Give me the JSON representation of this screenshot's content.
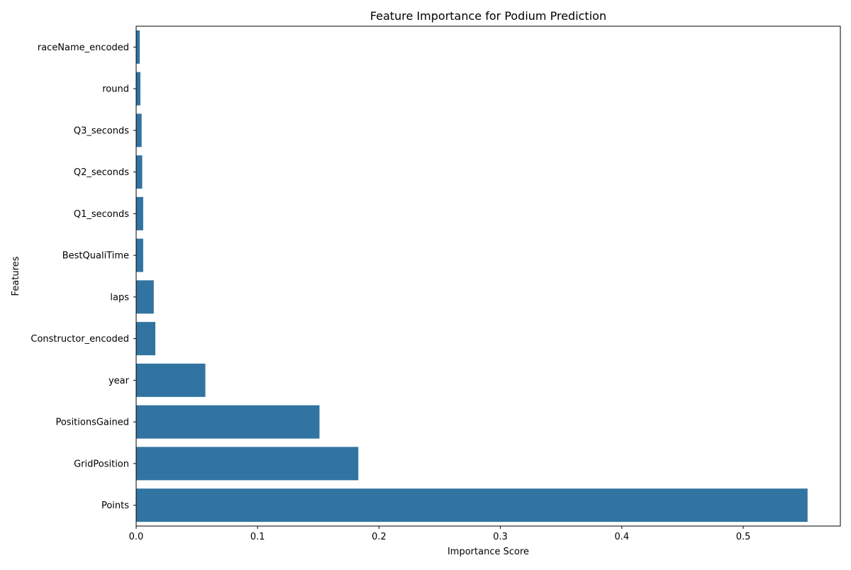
{
  "chart_data": {
    "type": "bar",
    "orientation": "horizontal",
    "title": "Feature Importance for Podium Prediction",
    "xlabel": "Importance Score",
    "ylabel": "Features",
    "categories": [
      "raceName_encoded",
      "round",
      "Q3_seconds",
      "Q2_seconds",
      "Q1_seconds",
      "BestQualiTime",
      "laps",
      "Constructor_encoded",
      "year",
      "PositionsGained",
      "GridPosition",
      "Points"
    ],
    "values": [
      0.003,
      0.0035,
      0.0045,
      0.005,
      0.0058,
      0.0058,
      0.0145,
      0.0158,
      0.057,
      0.151,
      0.183,
      0.553
    ],
    "xlim": [
      0,
      0.58
    ],
    "xticks": [
      "0.0",
      "0.1",
      "0.2",
      "0.3",
      "0.4",
      "0.5"
    ],
    "xtick_values": [
      0,
      0.1,
      0.2,
      0.3,
      0.4,
      0.5
    ],
    "grid": false,
    "bar_color": "#3274a1"
  }
}
